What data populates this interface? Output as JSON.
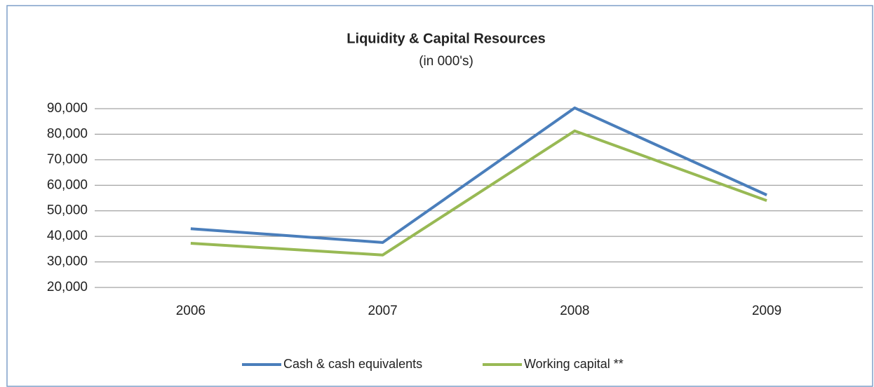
{
  "chart_data": {
    "type": "line",
    "title": "Liquidity & Capital Resources",
    "subtitle": "(in 000's)",
    "categories": [
      "2006",
      "2007",
      "2008",
      "2009"
    ],
    "series": [
      {
        "name": "Cash & cash equivalents",
        "color": "#4a7ebb",
        "values": [
          43000,
          37600,
          90300,
          56200
        ]
      },
      {
        "name": "Working capital **",
        "color": "#98b954",
        "values": [
          37300,
          32700,
          81300,
          54000
        ]
      }
    ],
    "ylim": [
      20000,
      90000
    ],
    "yticks": [
      {
        "value": 20000,
        "label": "20,000"
      },
      {
        "value": 30000,
        "label": "30,000"
      },
      {
        "value": 40000,
        "label": "40,000"
      },
      {
        "value": 50000,
        "label": "50,000"
      },
      {
        "value": 60000,
        "label": "60,000"
      },
      {
        "value": 70000,
        "label": "70,000"
      },
      {
        "value": 80000,
        "label": "80,000"
      },
      {
        "value": 90000,
        "label": "90,000"
      }
    ],
    "grid": true,
    "legend": "bottom"
  }
}
